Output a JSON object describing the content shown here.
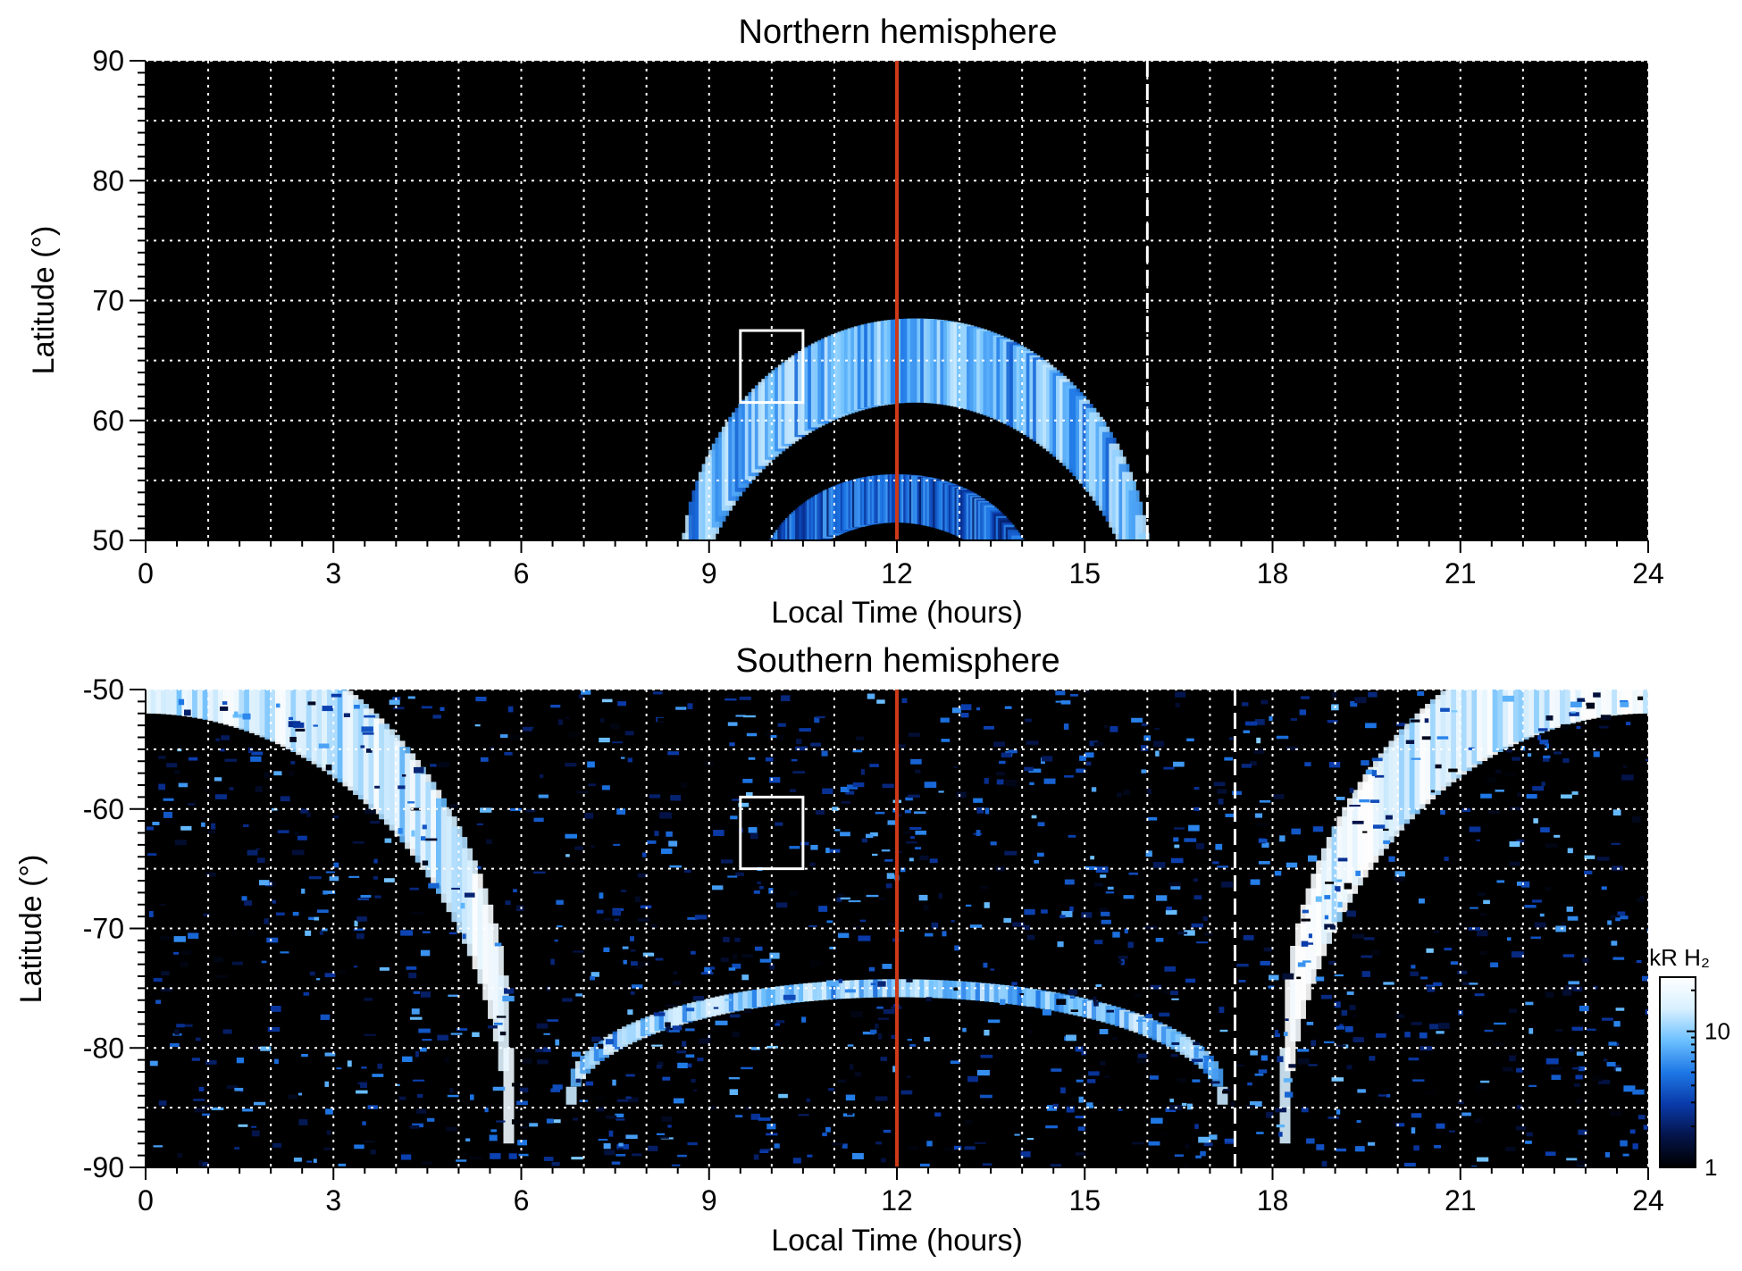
{
  "colors": {
    "background": "#000000",
    "grid": "#ffffff",
    "noon_line": "#cc3a1a",
    "aurora_dim": "#0a2a8a",
    "aurora_mid": "#1e78e6",
    "aurora_bright": "#8fd0ff",
    "aurora_peak": "#ffffff"
  },
  "colorbar": {
    "title": "kR H₂",
    "ticks": [
      {
        "value": 1,
        "label": "1"
      },
      {
        "value": 10,
        "label": "10"
      }
    ],
    "range": [
      1,
      25
    ],
    "scale": "log",
    "colormap": [
      "#000000",
      "#04144a",
      "#0a3aaa",
      "#1e78e6",
      "#6cc0ff",
      "#d8f0ff",
      "#ffffff"
    ]
  },
  "chart_data": [
    {
      "type": "heatmap",
      "title": "Northern hemisphere",
      "xlabel": "Local Time (hours)",
      "ylabel": "Latitude (°)",
      "xlim": [
        0,
        24
      ],
      "ylim": [
        50,
        90
      ],
      "xticks": [
        0,
        3,
        6,
        9,
        12,
        15,
        18,
        21,
        24
      ],
      "xtick_labels": [
        "0",
        "3",
        "6",
        "9",
        "12",
        "15",
        "18",
        "21",
        "24"
      ],
      "yticks": [
        50,
        60,
        70,
        80,
        90
      ],
      "ytick_labels": [
        "50",
        "60",
        "70",
        "80",
        "90"
      ],
      "grid": true,
      "noon_line_x": 12,
      "dashed_line_x": 16,
      "box": {
        "x": [
          9.5,
          10.5
        ],
        "y": [
          61.5,
          67.5
        ]
      },
      "features": [
        {
          "kind": "arc",
          "center_x": 12.3,
          "center_y": 43.5,
          "half_width_hours": 3.7,
          "height_deg": 21.5,
          "thickness_deg": 7,
          "intensity_kR": 8
        },
        {
          "kind": "arc",
          "center_x": 12.0,
          "center_y": 43.5,
          "half_width_hours": 2.2,
          "height_deg": 10,
          "thickness_deg": 4,
          "intensity_kR": 4
        }
      ]
    },
    {
      "type": "heatmap",
      "title": "Southern hemisphere",
      "xlabel": "Local Time (hours)",
      "ylabel": "Latitude (°)",
      "xlim": [
        0,
        24
      ],
      "ylim": [
        -90,
        -50
      ],
      "xticks": [
        0,
        3,
        6,
        9,
        12,
        15,
        18,
        21,
        24
      ],
      "xtick_labels": [
        "0",
        "3",
        "6",
        "9",
        "12",
        "15",
        "18",
        "21",
        "24"
      ],
      "yticks": [
        -90,
        -80,
        -70,
        -60,
        -50
      ],
      "ytick_labels": [
        "-90",
        "-80",
        "-70",
        "-60",
        "-50"
      ],
      "grid": true,
      "noon_line_x": 12,
      "dashed_line_x": 17.4,
      "box": {
        "x": [
          9.5,
          10.5
        ],
        "y": [
          -65,
          -59
        ]
      },
      "features": [
        {
          "kind": "arc",
          "center_x": 0,
          "center_y": -84,
          "half_width_hours": 5.8,
          "height_deg": 36,
          "thickness_deg": 8,
          "intensity_kR": 15
        },
        {
          "kind": "arc",
          "center_x": 24,
          "center_y": -84,
          "half_width_hours": 5.8,
          "height_deg": 36,
          "thickness_deg": 8,
          "intensity_kR": 18
        },
        {
          "kind": "arc",
          "center_x": 12,
          "center_y": -84,
          "half_width_hours": 5.2,
          "height_deg": 9,
          "thickness_deg": 1.5,
          "intensity_kR": 9
        },
        {
          "kind": "noise",
          "x": [
            0,
            24
          ],
          "y": [
            -90,
            -50
          ],
          "intensity_kR": 3
        }
      ]
    }
  ]
}
